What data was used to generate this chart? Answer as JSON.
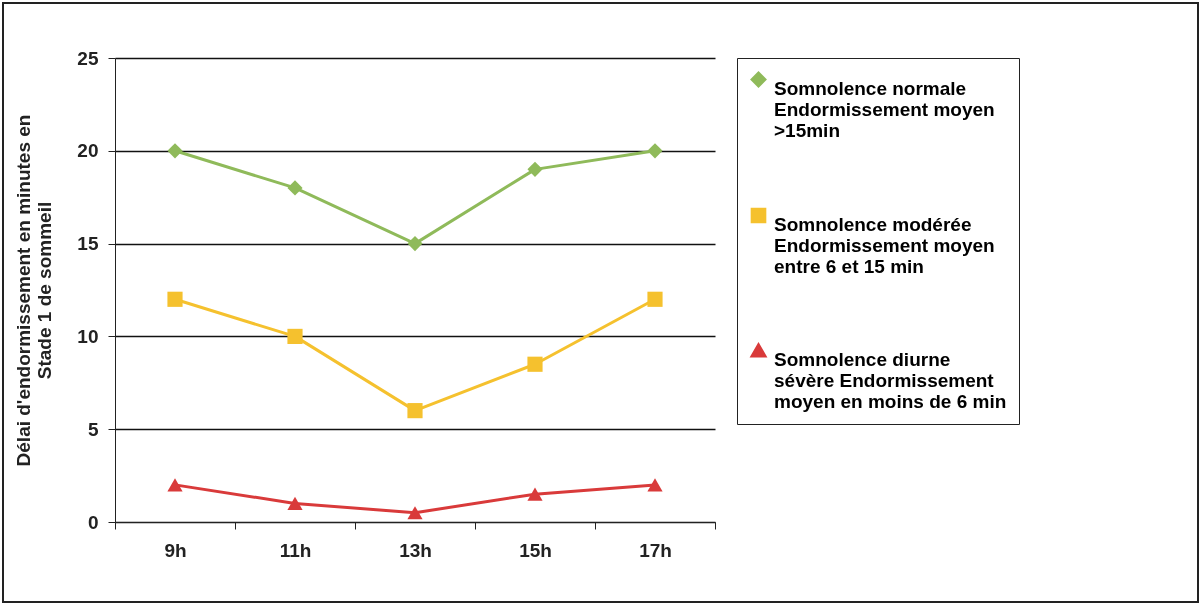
{
  "chart_data": {
    "type": "line",
    "ylabel": "Délai d'endormissement en minutes en Stade 1 de sommeil",
    "categories": [
      "9h",
      "11h",
      "13h",
      "15h",
      "17h"
    ],
    "series": [
      {
        "name": "Somnolence normale Endormissement moyen >15min",
        "color": "#8fba5a",
        "marker": "diamond",
        "values": [
          20,
          18,
          15,
          19,
          20
        ]
      },
      {
        "name": "Somnolence modérée Endormissement moyen entre 6 et 15 min",
        "color": "#f5c12e",
        "marker": "square",
        "values": [
          12,
          10,
          6,
          8.5,
          12
        ]
      },
      {
        "name": "Somnolence diurne sévère Endormissement moyen en moins de 6 min",
        "color": "#d93a3a",
        "marker": "triangle",
        "values": [
          2,
          1,
          0.5,
          1.5,
          2
        ]
      }
    ],
    "ylim": [
      0,
      25
    ],
    "yticks": [
      0,
      5,
      10,
      15,
      20,
      25
    ],
    "grid": "y",
    "legend": "right"
  }
}
